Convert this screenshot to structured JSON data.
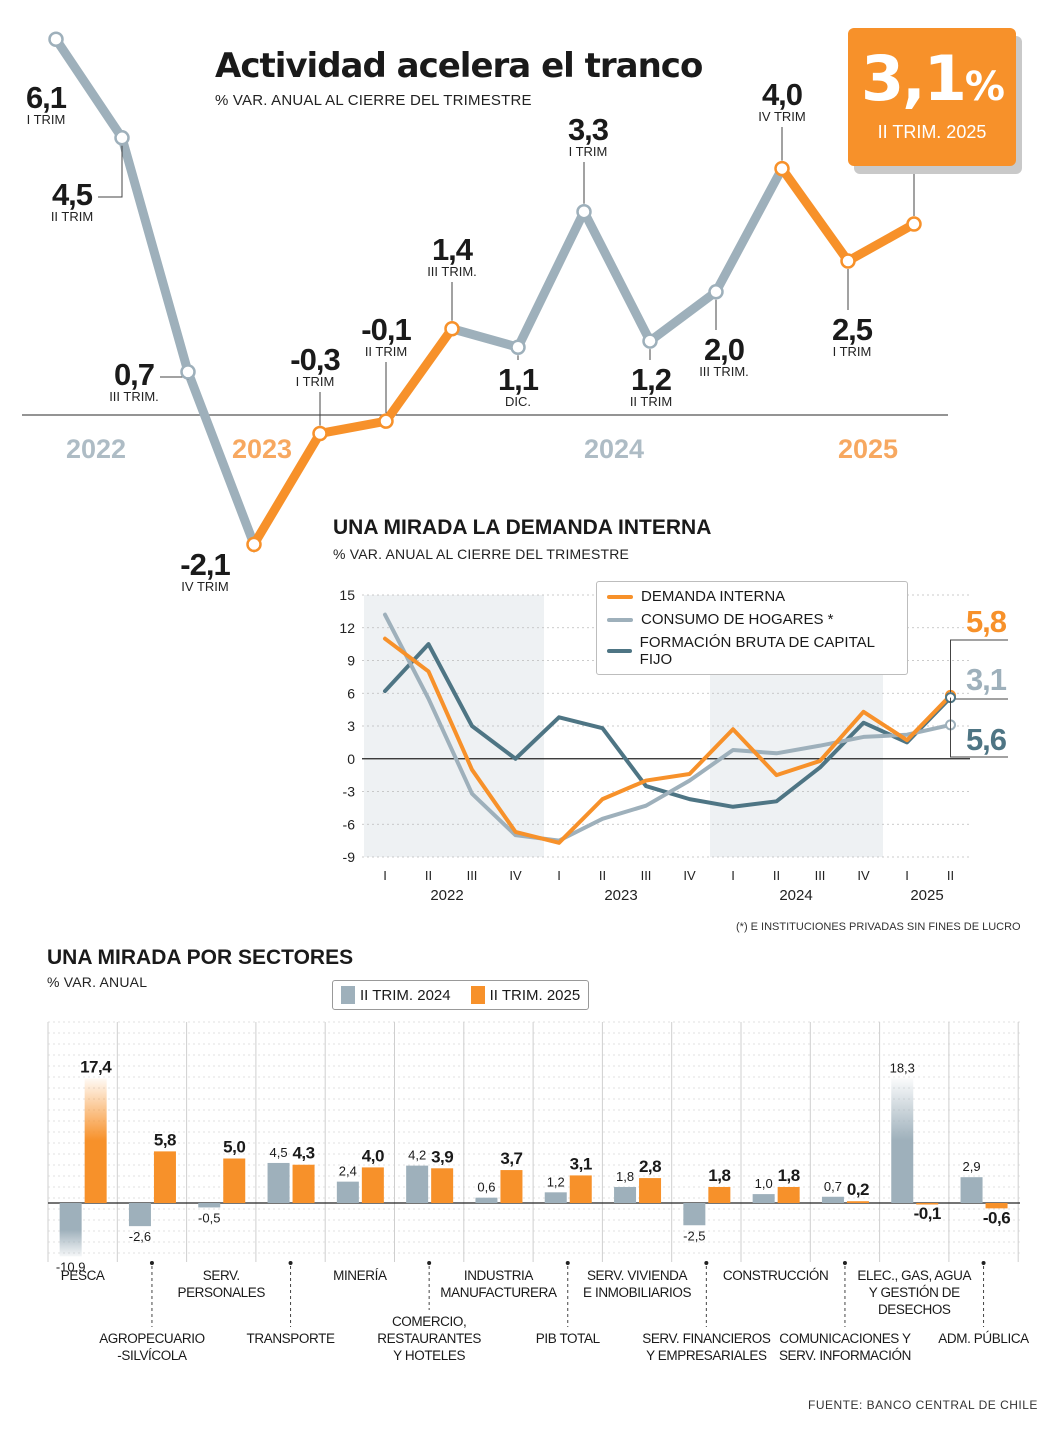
{
  "headline": {
    "title": "Actividad acelera el tranco",
    "subtitle": "% VAR. ANUAL AL CIERRE DEL TRIMESTRE"
  },
  "badge": {
    "value": "3,1",
    "unit": "%",
    "label": "II TRIM. 2025"
  },
  "colors": {
    "gray": "#9eb0bb",
    "orange": "#f7912a",
    "teal": "#4e7584",
    "year_gray": "#aebcc5",
    "year_orange": "#f7a860"
  },
  "chart_data": [
    {
      "type": "line",
      "title": "Actividad acelera el tranco",
      "subtitle": "% VAR. ANUAL AL CIERRE DEL TRIMESTRE",
      "years": [
        "2022",
        "2023",
        "2024",
        "2025"
      ],
      "points": [
        {
          "value": 6.1,
          "label": "6,1",
          "sub": "I TRIM",
          "color": "gray"
        },
        {
          "value": 4.5,
          "label": "4,5",
          "sub": "II TRIM",
          "color": "gray"
        },
        {
          "value": 0.7,
          "label": "0,7",
          "sub": "III TRIM.",
          "color": "gray"
        },
        {
          "value": -2.1,
          "label": "-2,1",
          "sub": "IV TRIM",
          "color": "orange"
        },
        {
          "value": -0.3,
          "label": "-0,3",
          "sub": "I TRIM",
          "color": "orange"
        },
        {
          "value": -0.1,
          "label": "-0,1",
          "sub": "II TRIM",
          "color": "orange"
        },
        {
          "value": 1.4,
          "label": "1,4",
          "sub": "III TRIM.",
          "color": "orange"
        },
        {
          "value": 1.1,
          "label": "1,1",
          "sub": "DIC.",
          "color": "gray"
        },
        {
          "value": 3.3,
          "label": "3,3",
          "sub": "I TRIM",
          "color": "gray"
        },
        {
          "value": 1.2,
          "label": "1,2",
          "sub": "II TRIM",
          "color": "gray"
        },
        {
          "value": 2.0,
          "label": "2,0",
          "sub": "III TRIM.",
          "color": "gray"
        },
        {
          "value": 4.0,
          "label": "4,0",
          "sub": "IV TRIM",
          "color": "orange"
        },
        {
          "value": 2.5,
          "label": "2,5",
          "sub": "I TRIM",
          "color": "orange"
        },
        {
          "value": 3.1,
          "label": "",
          "sub": "",
          "color": "orange"
        }
      ]
    },
    {
      "type": "line",
      "title": "UNA MIRADA LA DEMANDA INTERNA",
      "subtitle": "% VAR. ANUAL AL CIERRE DEL TRIMESTRE",
      "ylim": [
        -9,
        15
      ],
      "yticks": [
        15,
        12,
        9,
        6,
        3,
        0,
        -3,
        -6,
        -9
      ],
      "x": [
        "I",
        "II",
        "III",
        "IV",
        "I",
        "II",
        "III",
        "IV",
        "I",
        "II",
        "III",
        "IV",
        "I",
        "II"
      ],
      "years": [
        "2022",
        "2023",
        "2024",
        "2025"
      ],
      "series": [
        {
          "name": "DEMANDA INTERNA",
          "color": "orange",
          "end_label": "5,8",
          "values": [
            11.0,
            8.0,
            -1.0,
            -6.7,
            -7.7,
            -3.7,
            -2.0,
            -1.4,
            2.7,
            -1.5,
            -0.2,
            4.3,
            1.7,
            5.8
          ]
        },
        {
          "name": "CONSUMO DE HOGARES *",
          "color": "gray",
          "end_label": "3,1",
          "values": [
            13.2,
            5.5,
            -3.2,
            -7.0,
            -7.5,
            -5.5,
            -4.3,
            -2.0,
            0.8,
            0.5,
            1.2,
            2.0,
            2.2,
            3.1
          ]
        },
        {
          "name": "FORMACIÓN BRUTA DE CAPITAL FIJO",
          "color": "teal",
          "end_label": "5,6",
          "values": [
            6.2,
            10.5,
            3.0,
            0.0,
            3.8,
            2.8,
            -2.5,
            -3.7,
            -4.4,
            -3.9,
            -0.8,
            3.3,
            1.5,
            5.6
          ]
        }
      ],
      "shaded_years": [
        "2022",
        "2024"
      ],
      "footnote": "(*) E INSTITUCIONES PRIVADAS SIN FINES DE LUCRO"
    },
    {
      "type": "bar",
      "title": "UNA MIRADA POR SECTORES",
      "subtitle": "% VAR. ANUAL",
      "series": [
        {
          "name": "II TRIM. 2024",
          "color": "gray"
        },
        {
          "name": "II TRIM. 2025",
          "color": "orange"
        }
      ],
      "categories": [
        {
          "name": "PESCA",
          "v2024": -10.9,
          "v2025": 17.4,
          "l2024": "-10,9",
          "l2025": "17,4",
          "pos": "top"
        },
        {
          "name": "AGROPECUARIO\n-SILVÍCOLA",
          "v2024": -2.6,
          "v2025": 5.8,
          "l2024": "-2,6",
          "l2025": "5,8",
          "pos": "low"
        },
        {
          "name": "SERV.\nPERSONALES",
          "v2024": -0.5,
          "v2025": 5.0,
          "l2024": "-0,5",
          "l2025": "5,0",
          "pos": "top"
        },
        {
          "name": "TRANSPORTE",
          "v2024": 4.5,
          "v2025": 4.3,
          "l2024": "4,5",
          "l2025": "4,3",
          "pos": "low"
        },
        {
          "name": "MINERÍA",
          "v2024": 2.4,
          "v2025": 4.0,
          "l2024": "2,4",
          "l2025": "4,0",
          "pos": "top"
        },
        {
          "name": "COMERCIO,\nRESTAURANTES\nY HOTELES",
          "v2024": 4.2,
          "v2025": 3.9,
          "l2024": "4,2",
          "l2025": "3,9",
          "pos": "mid"
        },
        {
          "name": "INDUSTRIA\nMANUFACTURERA",
          "v2024": 0.6,
          "v2025": 3.7,
          "l2024": "0,6",
          "l2025": "3,7",
          "pos": "top"
        },
        {
          "name": "PIB TOTAL",
          "v2024": 1.2,
          "v2025": 3.1,
          "l2024": "1,2",
          "l2025": "3,1",
          "pos": "low"
        },
        {
          "name": "SERV. VIVIENDA\nE INMOBILIARIOS",
          "v2024": 1.8,
          "v2025": 2.8,
          "l2024": "1,8",
          "l2025": "2,8",
          "pos": "top"
        },
        {
          "name": "SERV. FINANCIEROS\nY EMPRESARIALES",
          "v2024": -2.5,
          "v2025": 1.8,
          "l2024": "-2,5",
          "l2025": "1,8",
          "pos": "low"
        },
        {
          "name": "CONSTRUCCIÓN",
          "v2024": 1.0,
          "v2025": 1.8,
          "l2024": "1,0",
          "l2025": "1,8",
          "pos": "top"
        },
        {
          "name": "COMUNICACIONES Y\nSERV. INFORMACIÓN",
          "v2024": 0.7,
          "v2025": 0.2,
          "l2024": "0,7",
          "l2025": "0,2",
          "pos": "low"
        },
        {
          "name": "ELEC., GAS, AGUA\nY GESTIÓN DE\nDESECHOS",
          "v2024": 18.3,
          "v2025": -0.1,
          "l2024": "18,3",
          "l2025": "-0,1",
          "pos": "top"
        },
        {
          "name": "ADM. PÚBLICA",
          "v2024": 2.9,
          "v2025": -0.6,
          "l2024": "2,9",
          "l2025": "-0,6",
          "pos": "low"
        }
      ],
      "source": "FUENTE: BANCO CENTRAL DE CHILE"
    }
  ]
}
